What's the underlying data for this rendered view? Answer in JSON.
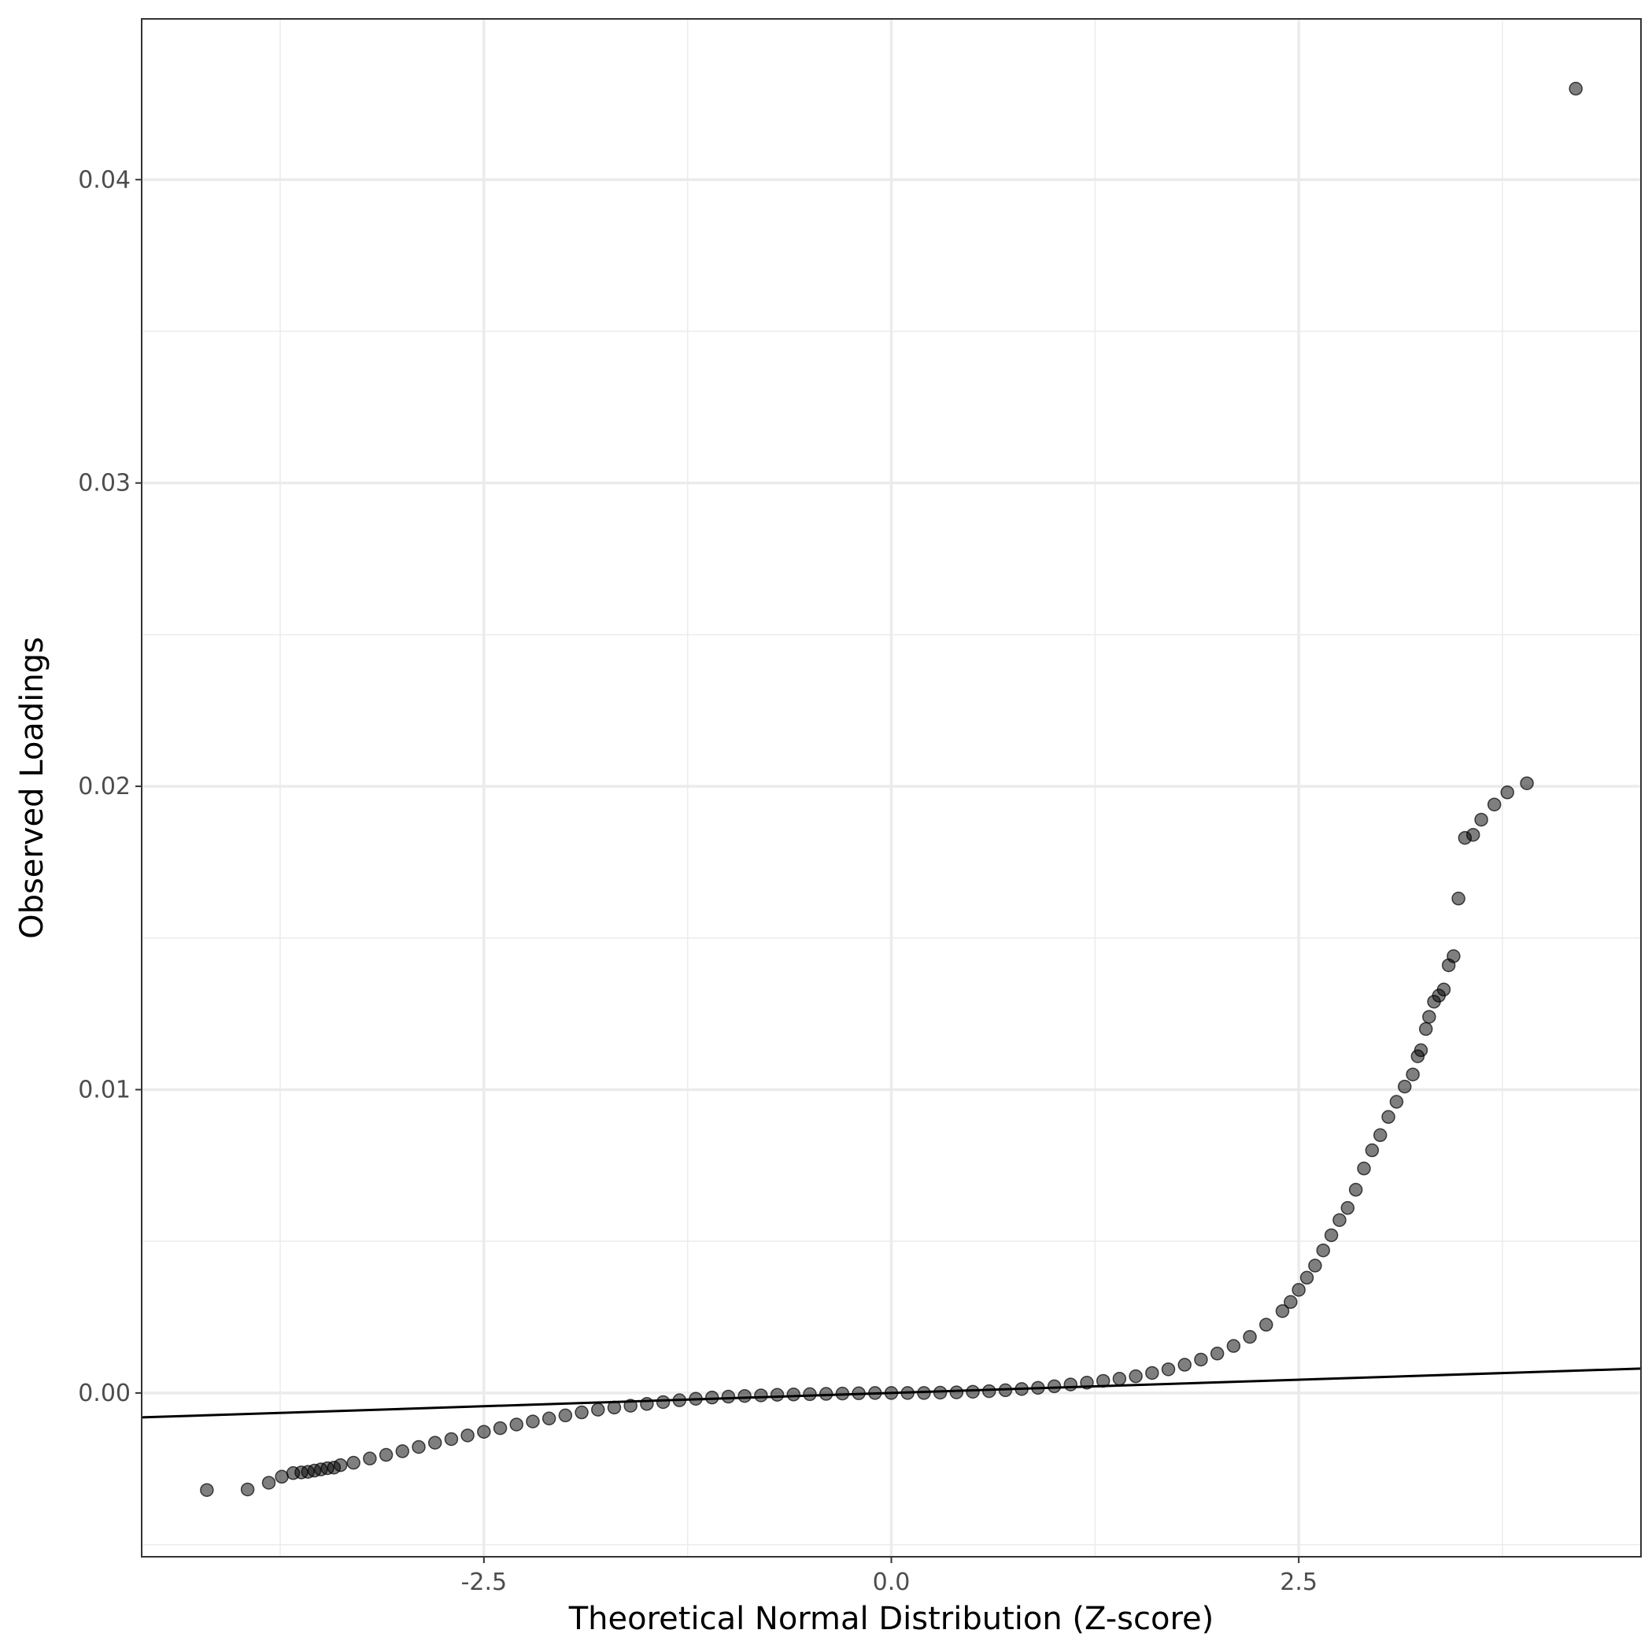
{
  "chart_data": {
    "type": "scatter",
    "title": "",
    "xlabel": "Theoretical Normal Distribution (Z-score)",
    "ylabel": "Observed Loadings",
    "xlim": [
      -4.6,
      4.6
    ],
    "ylim": [
      -0.0054,
      0.0453
    ],
    "x_ticks": [
      -2.5,
      0.0,
      2.5
    ],
    "x_tick_labels": [
      "-2.5",
      "0.0",
      "2.5"
    ],
    "x_minor_ticks": [
      -3.75,
      -1.25,
      1.25,
      3.75
    ],
    "y_ticks": [
      0.0,
      0.01,
      0.02,
      0.03,
      0.04
    ],
    "y_tick_labels": [
      "0.00",
      "0.01",
      "0.02",
      "0.03",
      "0.04"
    ],
    "y_minor_ticks": [
      -0.005,
      0.005,
      0.015,
      0.025,
      0.035
    ],
    "grid": true,
    "theme": "black-and-white",
    "point_color": "#000000",
    "point_opacity": 0.5,
    "reference_line": {
      "intercept": 0.0,
      "slope": 0.000175,
      "color": "#000000"
    },
    "series": [
      {
        "points": [
          [
            -4.2,
            -0.0032
          ],
          [
            -3.95,
            -0.00318
          ],
          [
            -3.82,
            -0.00296
          ],
          [
            -3.74,
            -0.00276
          ],
          [
            -3.67,
            -0.00264
          ],
          [
            -3.62,
            -0.00262
          ],
          [
            -3.58,
            -0.0026
          ],
          [
            -3.54,
            -0.00256
          ],
          [
            -3.5,
            -0.00252
          ],
          [
            -3.46,
            -0.00248
          ],
          [
            -3.42,
            -0.00246
          ],
          [
            -3.38,
            -0.00238
          ],
          [
            -3.3,
            -0.0023
          ],
          [
            -3.2,
            -0.00216
          ],
          [
            -3.1,
            -0.00204
          ],
          [
            -3.0,
            -0.00192
          ],
          [
            -2.9,
            -0.00178
          ],
          [
            -2.8,
            -0.00164
          ],
          [
            -2.7,
            -0.00152
          ],
          [
            -2.6,
            -0.0014
          ],
          [
            -2.5,
            -0.00128
          ],
          [
            -2.4,
            -0.00116
          ],
          [
            -2.3,
            -0.00104
          ],
          [
            -2.2,
            -0.00094
          ],
          [
            -2.1,
            -0.00084
          ],
          [
            -2.0,
            -0.00074
          ],
          [
            -1.9,
            -0.00064
          ],
          [
            -1.8,
            -0.00055
          ],
          [
            -1.7,
            -0.00048
          ],
          [
            -1.6,
            -0.00042
          ],
          [
            -1.5,
            -0.00036
          ],
          [
            -1.4,
            -0.0003
          ],
          [
            -1.3,
            -0.00024
          ],
          [
            -1.2,
            -0.00019
          ],
          [
            -1.1,
            -0.00015
          ],
          [
            -1.0,
            -0.00012
          ],
          [
            -0.9,
            -0.0001
          ],
          [
            -0.8,
            -8e-05
          ],
          [
            -0.7,
            -6e-05
          ],
          [
            -0.6,
            -5e-05
          ],
          [
            -0.5,
            -4e-05
          ],
          [
            -0.4,
            -3e-05
          ],
          [
            -0.3,
            -2e-05
          ],
          [
            -0.2,
            -1e-05
          ],
          [
            -0.1,
            0.0
          ],
          [
            0.0,
            0.0
          ],
          [
            0.1,
            0.0
          ],
          [
            0.2,
            0.0
          ],
          [
            0.3,
            1e-05
          ],
          [
            0.4,
            2e-05
          ],
          [
            0.5,
            4e-05
          ],
          [
            0.6,
            6e-05
          ],
          [
            0.7,
            9e-05
          ],
          [
            0.8,
            0.00013
          ],
          [
            0.9,
            0.00017
          ],
          [
            1.0,
            0.00022
          ],
          [
            1.1,
            0.00028
          ],
          [
            1.2,
            0.00034
          ],
          [
            1.3,
            0.0004
          ],
          [
            1.4,
            0.00047
          ],
          [
            1.5,
            0.00055
          ],
          [
            1.6,
            0.00066
          ],
          [
            1.7,
            0.00078
          ],
          [
            1.8,
            0.00093
          ],
          [
            1.9,
            0.0011
          ],
          [
            2.0,
            0.0013
          ],
          [
            2.1,
            0.00155
          ],
          [
            2.2,
            0.00185
          ],
          [
            2.3,
            0.00225
          ],
          [
            2.4,
            0.0027
          ],
          [
            2.45,
            0.003
          ],
          [
            2.5,
            0.0034
          ],
          [
            2.55,
            0.0038
          ],
          [
            2.6,
            0.0042
          ],
          [
            2.65,
            0.0047
          ],
          [
            2.7,
            0.0052
          ],
          [
            2.75,
            0.0057
          ],
          [
            2.8,
            0.0061
          ],
          [
            2.85,
            0.0067
          ],
          [
            2.9,
            0.0074
          ],
          [
            2.95,
            0.008
          ],
          [
            3.0,
            0.0085
          ],
          [
            3.05,
            0.0091
          ],
          [
            3.1,
            0.0096
          ],
          [
            3.15,
            0.0101
          ],
          [
            3.2,
            0.0105
          ],
          [
            3.23,
            0.0111
          ],
          [
            3.25,
            0.0113
          ],
          [
            3.28,
            0.012
          ],
          [
            3.3,
            0.0124
          ],
          [
            3.33,
            0.0129
          ],
          [
            3.36,
            0.0131
          ],
          [
            3.39,
            0.0133
          ],
          [
            3.42,
            0.0141
          ],
          [
            3.45,
            0.0144
          ],
          [
            3.48,
            0.0163
          ],
          [
            3.52,
            0.0183
          ],
          [
            3.57,
            0.0184
          ],
          [
            3.62,
            0.0189
          ],
          [
            3.7,
            0.0194
          ],
          [
            3.78,
            0.0198
          ],
          [
            3.9,
            0.0201
          ],
          [
            4.2,
            0.043
          ]
        ]
      }
    ]
  }
}
